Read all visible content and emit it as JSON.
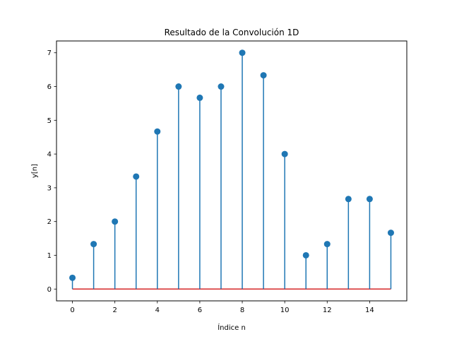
{
  "chart_data": {
    "type": "stem",
    "title": "Resultado de la Convolución 1D",
    "xlabel": "Índice n",
    "ylabel": "y[n]",
    "x": [
      0,
      1,
      2,
      3,
      4,
      5,
      6,
      7,
      8,
      9,
      10,
      11,
      12,
      13,
      14,
      15
    ],
    "values": [
      0.333,
      1.333,
      2.0,
      3.333,
      4.667,
      6.0,
      5.667,
      6.0,
      7.0,
      6.333,
      4.0,
      1.0,
      1.333,
      2.667,
      2.667,
      1.667
    ],
    "xlim": [
      -0.75,
      15.75
    ],
    "ylim": [
      -0.35,
      7.35
    ],
    "xticks": [
      0,
      2,
      4,
      6,
      8,
      10,
      12,
      14
    ],
    "yticks": [
      0,
      1,
      2,
      3,
      4,
      5,
      6,
      7
    ],
    "grid": false,
    "stem_color": "#1f77b4",
    "baseline_color": "#d62728"
  }
}
